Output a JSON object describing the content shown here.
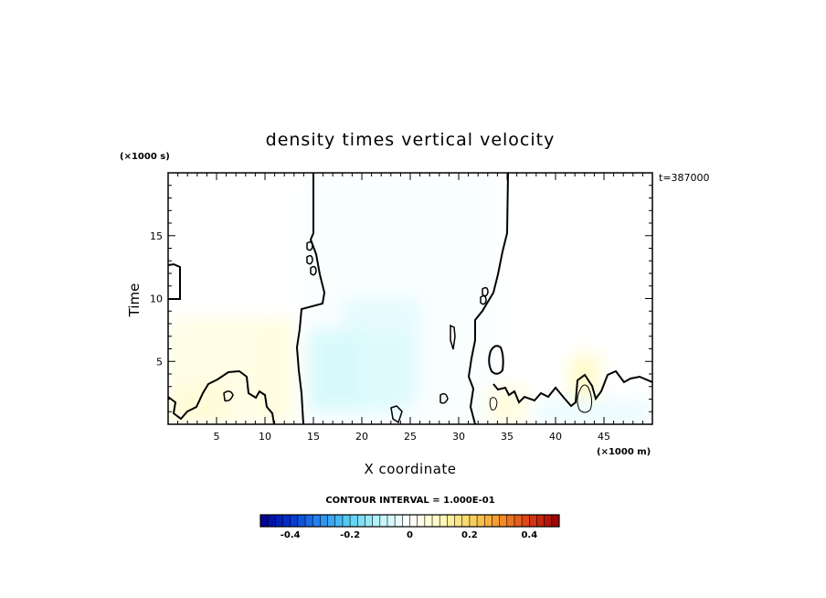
{
  "chart_data": {
    "type": "heatmap",
    "title": "density times vertical velocity",
    "xlabel": "X coordinate",
    "ylabel": "Time",
    "x_unit_label": "(×1000 m)",
    "y_unit_label": "(×1000 s)",
    "time_label": "t=387000",
    "xlim": [
      0,
      50
    ],
    "ylim": [
      0,
      20
    ],
    "x_ticks": [
      5,
      10,
      15,
      20,
      25,
      30,
      35,
      40,
      45
    ],
    "y_ticks": [
      5,
      10,
      15
    ],
    "contour_interval_label": "CONTOUR INTERVAL = 1.000E-01",
    "colorbar": {
      "min": -0.5,
      "max": 0.5,
      "ticks": [
        -0.4,
        -0.2,
        0,
        0.2,
        0.4
      ],
      "tick_labels": [
        "-0.4",
        "-0.2",
        "0",
        "0.2",
        "0.4"
      ]
    },
    "fields": [
      {
        "x": [
          0,
          13
        ],
        "y": [
          0,
          8.5
        ],
        "value": 0.04
      },
      {
        "x": [
          0,
          6
        ],
        "y": [
          0,
          3
        ],
        "value": 0.06
      },
      {
        "x": [
          9,
          13
        ],
        "y": [
          1,
          8
        ],
        "value": 0.05
      },
      {
        "x": [
          14,
          34
        ],
        "y": [
          0,
          20
        ],
        "value": -0.01
      },
      {
        "x": [
          18,
          26
        ],
        "y": [
          2,
          10
        ],
        "value": -0.04
      },
      {
        "x": [
          14.5,
          20
        ],
        "y": [
          1,
          7.5
        ],
        "value": -0.06
      },
      {
        "x": [
          20,
          25
        ],
        "y": [
          1,
          7
        ],
        "value": -0.05
      },
      {
        "x": [
          33,
          37
        ],
        "y": [
          0,
          3
        ],
        "value": 0.05
      },
      {
        "x": [
          41.5,
          44.5
        ],
        "y": [
          1,
          5.5
        ],
        "value": 0.08
      },
      {
        "x": [
          38,
          50
        ],
        "y": [
          0,
          2
        ],
        "value": -0.03
      }
    ],
    "contour_levels": [
      0,
      0.1
    ]
  }
}
